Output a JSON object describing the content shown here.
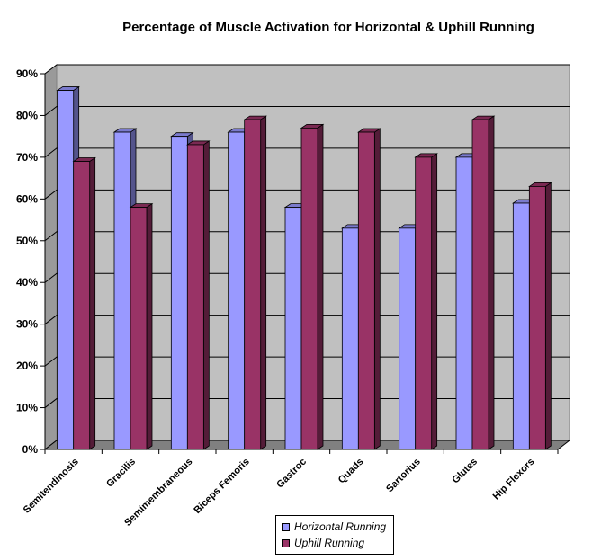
{
  "chart_data": {
    "type": "bar",
    "title": "Percentage of Muscle Activation for Horizontal & Uphill Running",
    "xlabel": "",
    "ylabel": "",
    "ylim": [
      0,
      90
    ],
    "y_ticks": [
      "0%",
      "10%",
      "20%",
      "30%",
      "40%",
      "50%",
      "60%",
      "70%",
      "80%",
      "90%"
    ],
    "grid": true,
    "legend_position": "bottom",
    "categories": [
      "Semitendinosis",
      "Gracilis",
      "Semimembraneous",
      "Biceps Femoris",
      "Gastroc",
      "Quads",
      "Sartorius",
      "Glutes",
      "Hip Flexors"
    ],
    "series": [
      {
        "name": "Horizontal Running",
        "color": "#9999ff",
        "values": [
          86,
          76,
          75,
          76,
          58,
          53,
          53,
          70,
          59
        ]
      },
      {
        "name": "Uphill Running",
        "color": "#993366",
        "values": [
          69,
          58,
          73,
          79,
          77,
          76,
          70,
          79,
          63
        ]
      }
    ]
  }
}
